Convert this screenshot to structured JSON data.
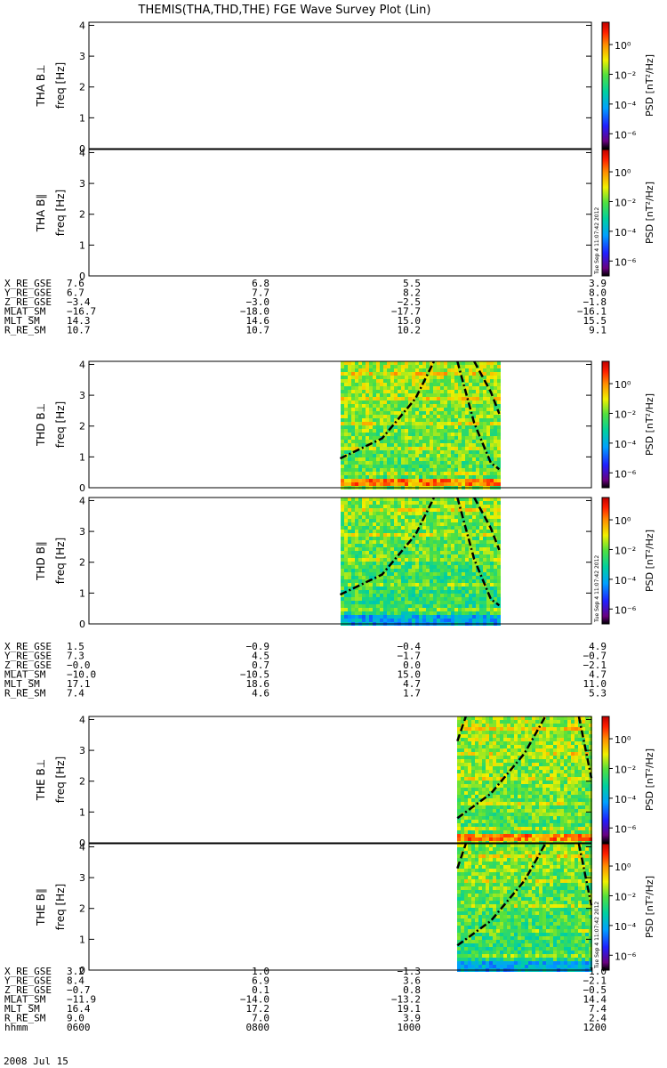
{
  "title": "THEMIS(THA,THD,THE) FGE Wave Survey Plot (Lin)",
  "date_stamp": "Tue Sep 4 11:07:42 2012",
  "footer": {
    "date": "2008 Jul 15"
  },
  "colorbar": {
    "label": "PSD [nT²/Hz]",
    "ticks": [
      "10⁰",
      "10⁻²",
      "10⁻⁴",
      "10⁻⁶"
    ]
  },
  "ephemeris_labels": [
    "X_RE_GSE",
    "Y_RE_GSE",
    "Z_RE_GSE",
    "MLAT_SM",
    "MLT_SM",
    "R_RE_SM"
  ],
  "blocks": [
    {
      "probe": "THA",
      "ephemeris": [
        [
          "7.6",
          "6.8",
          "5.5",
          "3.9"
        ],
        [
          "6.7",
          "7.7",
          "8.2",
          "8.0"
        ],
        [
          "−3.4",
          "−3.0",
          "−2.5",
          "−1.8"
        ],
        [
          "−16.7",
          "−18.0",
          "−17.7",
          "−16.1"
        ],
        [
          "14.3",
          "14.6",
          "15.0",
          "15.5"
        ],
        [
          "10.7",
          "10.7",
          "10.2",
          "9.1"
        ]
      ]
    },
    {
      "probe": "THD",
      "ephemeris": [
        [
          "1.5",
          "−0.9",
          "−0.4",
          "4.9"
        ],
        [
          "7.3",
          "4.5",
          "−1.7",
          "−0.7"
        ],
        [
          "−0.0",
          "0.7",
          "0.0",
          "−2.1"
        ],
        [
          "−10.0",
          "−10.5",
          "15.0",
          "4.7"
        ],
        [
          "17.1",
          "18.6",
          "4.7",
          "11.0"
        ],
        [
          "7.4",
          "4.6",
          "1.7",
          "5.3"
        ]
      ]
    },
    {
      "probe": "THE",
      "ephemeris": [
        [
          "3.2",
          "1.0",
          "−1.3",
          "1.0"
        ],
        [
          "8.4",
          "6.9",
          "3.6",
          "−2.1"
        ],
        [
          "−0.7",
          "0.1",
          "0.8",
          "−0.5"
        ],
        [
          "−11.9",
          "−14.0",
          "−13.2",
          "14.4"
        ],
        [
          "16.4",
          "17.2",
          "19.1",
          "7.4"
        ],
        [
          "9.0",
          "7.0",
          "3.9",
          "2.4"
        ]
      ],
      "time_label": "hhmm",
      "times": [
        "0600",
        "0800",
        "1000",
        "1200"
      ]
    }
  ],
  "chart_data": {
    "type": "heatmap",
    "title": "THEMIS(THA,THD,THE) FGE Wave Survey Plot (Lin)",
    "x_axis": {
      "label": "hhmm",
      "ticks": [
        "0600",
        "0800",
        "1000",
        "1200"
      ],
      "range_hours": [
        6,
        12
      ]
    },
    "y_axis": {
      "label": "freq [Hz]",
      "ticks": [
        "0",
        "1",
        "2",
        "3",
        "4"
      ],
      "range": [
        0,
        4.1
      ]
    },
    "colorbar": {
      "label": "PSD [nT²/Hz]",
      "log_range": [
        -7,
        1.5
      ],
      "ticks": [
        "10⁰",
        "10⁻²",
        "10⁻⁴",
        "10⁻⁶"
      ]
    },
    "panels": [
      {
        "name": "THA B⊥",
        "probe": "THA",
        "component": "perp",
        "data_span_hours": null
      },
      {
        "name": "THA B∥",
        "probe": "THA",
        "component": "par",
        "data_span_hours": null
      },
      {
        "name": "THD B⊥",
        "probe": "THD",
        "component": "perp",
        "data_span_hours": [
          9.0,
          10.9
        ],
        "gyro_curves": [
          {
            "style": "dashdot",
            "points": [
              [
                9.0,
                0.95
              ],
              [
                9.5,
                1.6
              ],
              [
                9.9,
                2.9
              ],
              [
                10.12,
                4.1
              ]
            ]
          },
          {
            "style": "dashdot",
            "points": [
              [
                10.4,
                4.1
              ],
              [
                10.6,
                2.1
              ],
              [
                10.8,
                0.8
              ],
              [
                10.9,
                0.6
              ]
            ]
          },
          {
            "style": "dashed",
            "points": [
              [
                10.6,
                4.1
              ],
              [
                10.8,
                3.1
              ],
              [
                10.9,
                2.4
              ]
            ]
          }
        ]
      },
      {
        "name": "THD B∥",
        "probe": "THD",
        "component": "par",
        "data_span_hours": [
          9.0,
          10.9
        ],
        "gyro_curves": [
          {
            "style": "dashdot",
            "points": [
              [
                9.0,
                0.95
              ],
              [
                9.5,
                1.6
              ],
              [
                9.9,
                2.9
              ],
              [
                10.12,
                4.1
              ]
            ]
          },
          {
            "style": "dashdot",
            "points": [
              [
                10.4,
                4.1
              ],
              [
                10.6,
                2.1
              ],
              [
                10.8,
                0.8
              ],
              [
                10.9,
                0.6
              ]
            ]
          },
          {
            "style": "dashed",
            "points": [
              [
                10.6,
                4.1
              ],
              [
                10.8,
                3.1
              ],
              [
                10.9,
                2.4
              ]
            ]
          }
        ]
      },
      {
        "name": "THE B⊥",
        "probe": "THE",
        "component": "perp",
        "data_span_hours": [
          10.4,
          12.0
        ],
        "gyro_curves": [
          {
            "style": "dashed",
            "points": [
              [
                10.4,
                3.3
              ],
              [
                10.5,
                4.1
              ]
            ]
          },
          {
            "style": "dashdot",
            "points": [
              [
                10.4,
                0.8
              ],
              [
                10.8,
                1.6
              ],
              [
                11.2,
                2.9
              ],
              [
                11.45,
                4.1
              ]
            ]
          },
          {
            "style": "dashdot",
            "points": [
              [
                11.85,
                4.1
              ],
              [
                12.0,
                2.1
              ]
            ]
          }
        ]
      },
      {
        "name": "THE B∥",
        "probe": "THE",
        "component": "par",
        "data_span_hours": [
          10.4,
          12.0
        ],
        "gyro_curves": [
          {
            "style": "dashed",
            "points": [
              [
                10.4,
                3.3
              ],
              [
                10.5,
                4.1
              ]
            ]
          },
          {
            "style": "dashdot",
            "points": [
              [
                10.4,
                0.8
              ],
              [
                10.8,
                1.6
              ],
              [
                11.2,
                2.9
              ],
              [
                11.45,
                4.1
              ]
            ]
          },
          {
            "style": "dashdot",
            "points": [
              [
                11.85,
                4.1
              ],
              [
                12.0,
                2.1
              ]
            ]
          }
        ]
      }
    ]
  }
}
